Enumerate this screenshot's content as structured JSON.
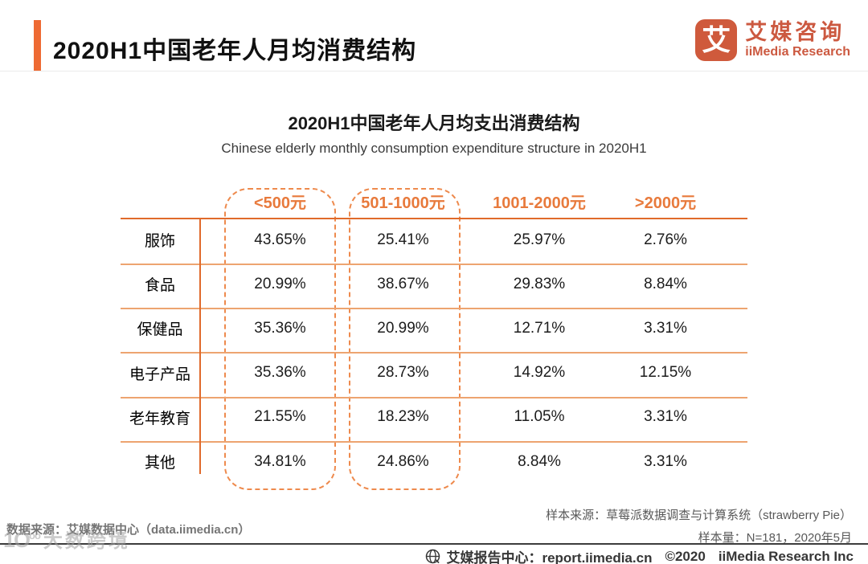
{
  "header": {
    "title": "2020H1中国老年人月均消费结构",
    "logo": {
      "icon_glyph": "艾",
      "name_cn": "艾媒咨询",
      "name_en": "iiMedia Research"
    }
  },
  "chart": {
    "title": "2020H1中国老年人月均支出消费结构",
    "subtitle": "Chinese elderly monthly consumption expenditure structure in 2020H1"
  },
  "chart_data": {
    "type": "table",
    "columns": [
      "<500元",
      "501-1000元",
      "1001-2000元",
      ">2000元"
    ],
    "rows": [
      {
        "label": "服饰",
        "values": [
          "43.65%",
          "25.41%",
          "25.97%",
          "2.76%"
        ]
      },
      {
        "label": "食品",
        "values": [
          "20.99%",
          "38.67%",
          "29.83%",
          "8.84%"
        ]
      },
      {
        "label": "保健品",
        "values": [
          "35.36%",
          "20.99%",
          "12.71%",
          "3.31%"
        ]
      },
      {
        "label": "电子产品",
        "values": [
          "35.36%",
          "28.73%",
          "14.92%",
          "12.15%"
        ]
      },
      {
        "label": "老年教育",
        "values": [
          "21.55%",
          "18.23%",
          "11.05%",
          "3.31%"
        ]
      },
      {
        "label": "其他",
        "values": [
          "34.81%",
          "24.86%",
          "8.84%",
          "3.31%"
        ]
      }
    ],
    "highlighted_columns": [
      "<500元",
      "501-1000元"
    ],
    "values_numeric_percent": [
      [
        43.65,
        25.41,
        25.97,
        2.76
      ],
      [
        20.99,
        38.67,
        29.83,
        8.84
      ],
      [
        35.36,
        20.99,
        12.71,
        3.31
      ],
      [
        35.36,
        28.73,
        14.92,
        12.15
      ],
      [
        21.55,
        18.23,
        11.05,
        3.31
      ],
      [
        34.81,
        24.86,
        8.84,
        3.31
      ]
    ],
    "legend_position": "none",
    "grid": "horizontal-rules"
  },
  "footer": {
    "data_source": "数据来源：艾媒数据中心（data.iimedia.cn）",
    "sample_source": "样本来源：草莓派数据调查与计算系统（strawberry Pie）",
    "sample_size": "样本量：N=181，2020年5月",
    "report_center": "艾媒报告中心：report.iimedia.cn",
    "copyright": "©2020",
    "company": "iiMedia Research  Inc",
    "watermark_logo": "10°°",
    "watermark_text": "大数跨境"
  },
  "colors": {
    "accent_orange": "#e87a3c",
    "strong_line_orange": "#e06a2b",
    "light_line_orange": "#eda470",
    "dashed_orange": "#ee8a4d",
    "title_bar_orange": "#ee6a33",
    "logo_orange": "#cf5a3c",
    "footer_line_dark": "#3d3d3d",
    "text_dark": "#1a1a1a",
    "text_gray": "#595959"
  }
}
